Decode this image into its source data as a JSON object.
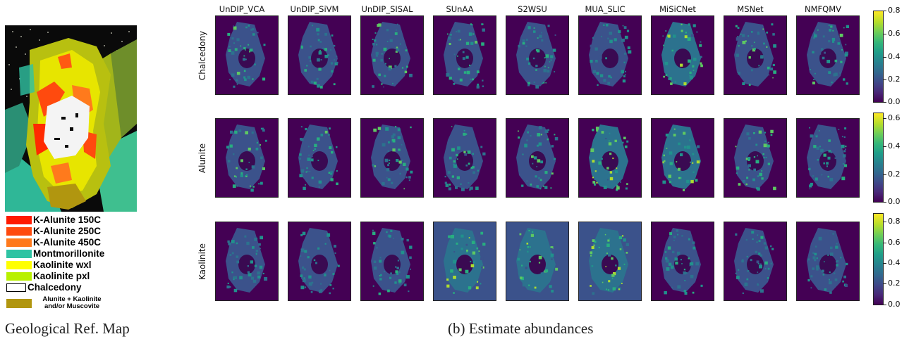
{
  "geo_ref_map": {
    "legend": [
      {
        "label": "K-Alunite 150C",
        "color": "#ff1a00"
      },
      {
        "label": "K-Alunite 250C",
        "color": "#ff4a0e"
      },
      {
        "label": "K-Alunite 450C",
        "color": "#ff7a1c"
      },
      {
        "label": "Montmorillonite",
        "color": "#2fc3a3"
      },
      {
        "label": "Kaolinite wxl",
        "color": "#ffff00"
      },
      {
        "label": "Kaolinite pxl",
        "color": "#b8f000"
      },
      {
        "label": "Chalcedony",
        "color": "#ffffff"
      },
      {
        "label": "Alunite + Kaolinite and/or Muscovite",
        "color": "#b1960f"
      }
    ],
    "caption": "Geological Ref. Map"
  },
  "abundances": {
    "caption": "(b) Estimate abundances",
    "methods": [
      "UnDIP_VCA",
      "UnDIP_SiVM",
      "UnDIP_SISAL",
      "SUnAA",
      "S2WSU",
      "MUA_SLIC",
      "MiSiCNet",
      "MSNet",
      "NMFQMV"
    ],
    "rows": [
      {
        "name": "Chalcedony",
        "colorbar": {
          "max": 0.8,
          "ticks": [
            "0.8",
            "0.6",
            "0.4",
            "0.2",
            "0.0"
          ]
        }
      },
      {
        "name": "Alunite",
        "colorbar": {
          "max": 0.65,
          "ticks": [
            "0.6",
            "0.4",
            "0.2",
            "0.0"
          ]
        }
      },
      {
        "name": "Kaolinite",
        "colorbar": {
          "max": 0.88,
          "ticks": [
            "0.8",
            "0.6",
            "0.4",
            "0.2",
            "0.0"
          ]
        }
      }
    ]
  }
}
